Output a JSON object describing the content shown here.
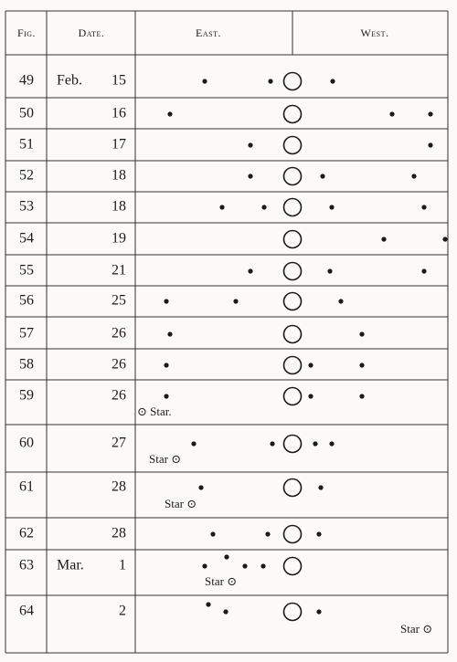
{
  "header": {
    "fig": "Fig.",
    "date": "Date.",
    "east": "East.",
    "west": "West."
  },
  "rows": [
    {
      "fig": "49",
      "month": "Feb.",
      "day": "15"
    },
    {
      "fig": "50",
      "day": "16"
    },
    {
      "fig": "51",
      "day": "17"
    },
    {
      "fig": "52",
      "day": "18"
    },
    {
      "fig": "53",
      "day": "18"
    },
    {
      "fig": "54",
      "day": "19"
    },
    {
      "fig": "55",
      "day": "21"
    },
    {
      "fig": "56",
      "day": "25"
    },
    {
      "fig": "57",
      "day": "26"
    },
    {
      "fig": "58",
      "day": "26"
    },
    {
      "fig": "59",
      "day": "26",
      "star": "⊙ Star."
    },
    {
      "fig": "60",
      "day": "27",
      "star": "Star ⊙"
    },
    {
      "fig": "61",
      "day": "28",
      "star": "Star ⊙"
    },
    {
      "fig": "62",
      "day": "28"
    },
    {
      "fig": "63",
      "month": "Mar.",
      "day": "1",
      "star": "Star ⊙"
    },
    {
      "fig": "64",
      "day": "2",
      "star": "Star ⊙"
    }
  ]
}
